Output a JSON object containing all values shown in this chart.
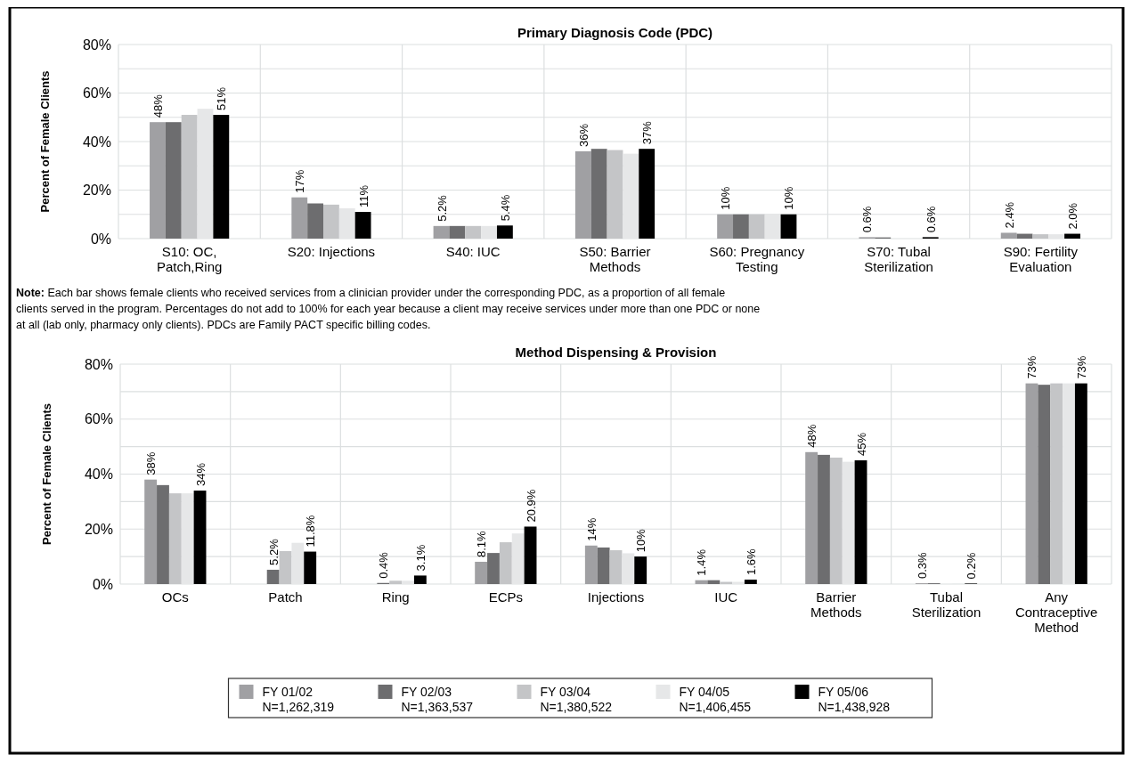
{
  "chart_data": [
    {
      "type": "bar",
      "title": "Primary Diagnosis Code (PDC)",
      "ylabel": "Percent of Female Clients",
      "categories": [
        "S10: OC, Patch,Ring",
        "S20: Injections",
        "S40: IUC",
        "S50: Barrier Methods",
        "S60: Pregnancy Testing",
        "S70: Tubal Sterilization",
        "S90: Fertility Evaluation"
      ],
      "series": [
        {
          "color": "#a0a0a3",
          "values": [
            48,
            17,
            5.2,
            36,
            10,
            0.6,
            2.4
          ],
          "value_labels": [
            "48%",
            "17%",
            "5.2%",
            "36%",
            "10%",
            "0.6%",
            "2.4%"
          ]
        },
        {
          "color": "#6d6d6f",
          "values": [
            48,
            14.5,
            5.2,
            37,
            10,
            0.5,
            2.0
          ]
        },
        {
          "color": "#c4c5c7",
          "values": [
            51,
            14,
            5.2,
            36.5,
            10,
            null,
            1.8
          ]
        },
        {
          "color": "#e6e7e8",
          "values": [
            53.5,
            12.5,
            5.2,
            35,
            10,
            null,
            1.8
          ]
        },
        {
          "color": "#000000",
          "values": [
            51,
            11,
            5.4,
            37,
            10,
            0.6,
            2.0
          ],
          "value_labels": [
            "51%",
            "11%",
            "5.4%",
            "37%",
            "10%",
            "0.6%",
            "2.0%"
          ]
        }
      ],
      "ylim": [
        0,
        80
      ],
      "yticks": [
        {
          "value": 0,
          "label": "0%"
        },
        {
          "value": 10,
          "label": null
        },
        {
          "value": 20,
          "label": "20%"
        },
        {
          "value": 30,
          "label": null
        },
        {
          "value": 40,
          "label": "40%"
        },
        {
          "value": 50,
          "label": null
        },
        {
          "value": 60,
          "label": "60%"
        },
        {
          "value": 70,
          "label": null
        },
        {
          "value": 80,
          "label": "80%"
        }
      ],
      "grid": true,
      "legend": false,
      "annotations": [
        "Note: Each bar shows female clients who received services from a clinician provider under the corresponding PDC, as a proportion of all female clients served in the program.  Percentages do not add to 100% for each year because a client may receive services under more than one PDC or none at all (lab only, pharmacy only clients).  PDCs are Family PACT specific billing codes."
      ]
    },
    {
      "type": "bar",
      "title": "Method Dispensing & Provision",
      "ylabel": "Percent of Female Clients",
      "categories": [
        "OCs",
        "Patch",
        "Ring",
        "ECPs",
        "Injections",
        "IUC",
        "Barrier Methods",
        "Tubal Sterilization",
        "Any Contraceptive Method"
      ],
      "series": [
        {
          "name": "FY 01/02\nN=1,262,319",
          "color": "#a0a0a3",
          "values": [
            38,
            null,
            null,
            8.1,
            14,
            1.4,
            48,
            0.3,
            73
          ],
          "value_labels": [
            "38%",
            null,
            null,
            "8.1%",
            "14%",
            "1.4%",
            "48%",
            "0.3%",
            "73%"
          ]
        },
        {
          "name": "FY 02/03\nN=1,363,537",
          "color": "#6d6d6f",
          "values": [
            36,
            5.2,
            0.4,
            11.3,
            13.3,
            1.4,
            47,
            0.3,
            72.5
          ],
          "value_labels": [
            null,
            "5.2%",
            "0.4%",
            null,
            null,
            null,
            null,
            null,
            null
          ]
        },
        {
          "name": "FY 03/04\nN=1,380,522",
          "color": "#c4c5c7",
          "values": [
            33,
            12,
            1.2,
            15.2,
            12.3,
            0.8,
            46,
            null,
            73
          ]
        },
        {
          "name": "FY 04/05\nN=1,406,455",
          "color": "#e6e7e8",
          "values": [
            33,
            15,
            1.2,
            18.4,
            11.2,
            0.8,
            44.5,
            0.1,
            73
          ]
        },
        {
          "name": "FY 05/06\nN=1,438,928",
          "color": "#000000",
          "values": [
            34,
            11.8,
            3.1,
            20.9,
            10,
            1.6,
            45,
            0.2,
            73
          ],
          "value_labels": [
            "34%",
            "11.8%",
            "3.1%",
            "20.9%",
            "10%",
            "1.6%",
            "45%",
            "0.2%",
            "73%"
          ]
        }
      ],
      "ylim": [
        0,
        80
      ],
      "yticks": [
        {
          "value": 0,
          "label": "0%"
        },
        {
          "value": 10,
          "label": null
        },
        {
          "value": 20,
          "label": "20%"
        },
        {
          "value": 30,
          "label": null
        },
        {
          "value": 40,
          "label": "40%"
        },
        {
          "value": 50,
          "label": null
        },
        {
          "value": 60,
          "label": "60%"
        },
        {
          "value": 70,
          "label": null
        },
        {
          "value": 80,
          "label": "80%"
        }
      ],
      "grid": true,
      "legend": "bottom"
    }
  ]
}
